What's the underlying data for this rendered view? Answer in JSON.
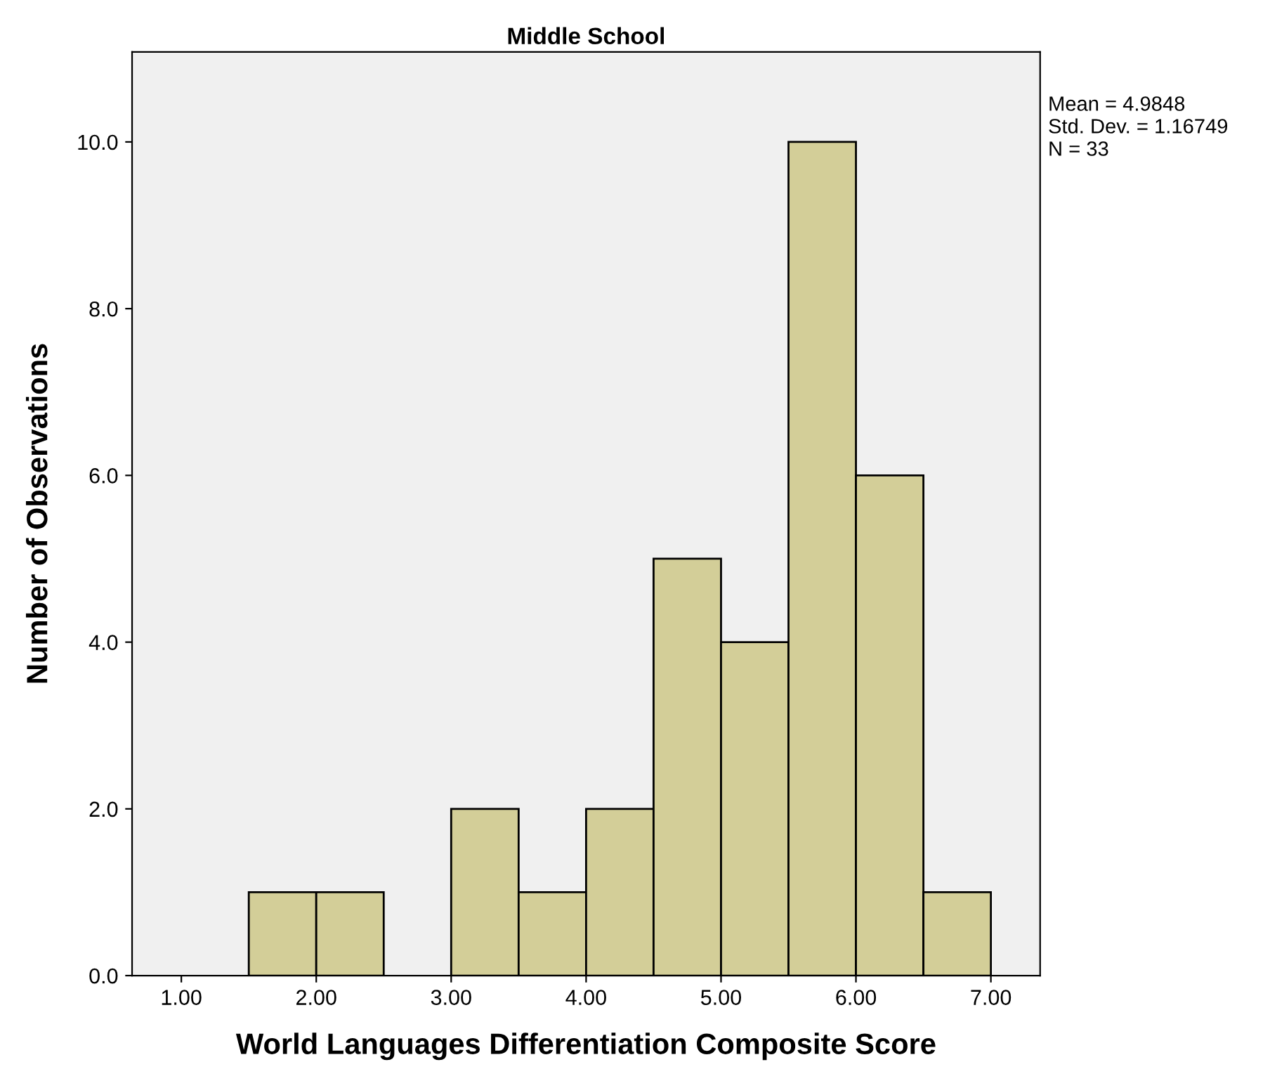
{
  "chart_data": {
    "type": "histogram",
    "title": "Middle School",
    "xlabel": "World Languages Differentiation Composite Score",
    "ylabel": "Number of Observations",
    "bins": [
      1.5,
      2.0,
      2.5,
      3.0,
      3.5,
      4.0,
      4.5,
      5.0,
      5.5,
      6.0,
      6.5,
      7.0
    ],
    "values": [
      1,
      1,
      0,
      2,
      1,
      2,
      5,
      4,
      10,
      6,
      1
    ],
    "color": "#d3ce98",
    "xlim": [
      0.635,
      7.365
    ],
    "xticks": [
      {
        "value": 1,
        "label": "1.00"
      },
      {
        "value": 2,
        "label": "2.00"
      },
      {
        "value": 3,
        "label": "3.00"
      },
      {
        "value": 4,
        "label": "4.00"
      },
      {
        "value": 5,
        "label": "5.00"
      },
      {
        "value": 6,
        "label": "6.00"
      },
      {
        "value": 7,
        "label": "7.00"
      }
    ],
    "ylim": [
      0,
      11.08
    ],
    "yticks": [
      {
        "value": 0,
        "label": "0.0"
      },
      {
        "value": 2,
        "label": "2.0"
      },
      {
        "value": 4,
        "label": "4.0"
      },
      {
        "value": 6,
        "label": "6.0"
      },
      {
        "value": 8,
        "label": "8.0"
      },
      {
        "value": 10,
        "label": "10.0"
      }
    ],
    "grid": false,
    "annotations": [
      "Mean = 4.9848",
      "Std. Dev. = 1.16749",
      "N = 33"
    ]
  }
}
